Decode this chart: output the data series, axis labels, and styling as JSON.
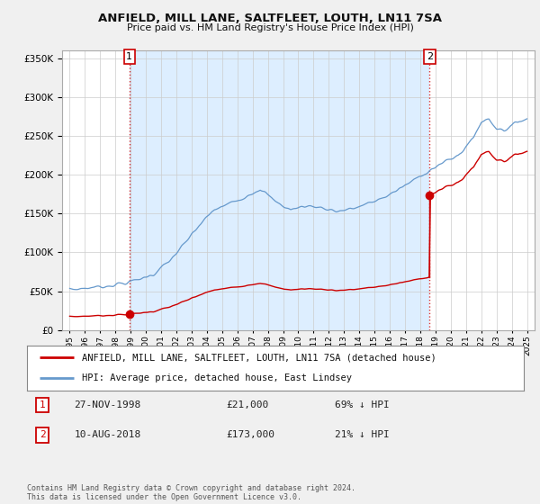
{
  "title": "ANFIELD, MILL LANE, SALTFLEET, LOUTH, LN11 7SA",
  "subtitle": "Price paid vs. HM Land Registry's House Price Index (HPI)",
  "bg_color": "#f0f0f0",
  "plot_bg_color": "#ffffff",
  "shade_color": "#ddeeff",
  "hpi_color": "#6699cc",
  "price_color": "#cc0000",
  "ylim": [
    0,
    360000
  ],
  "yticks": [
    0,
    50000,
    100000,
    150000,
    200000,
    250000,
    300000,
    350000
  ],
  "xlabel_years": [
    "1995",
    "1996",
    "1997",
    "1998",
    "1999",
    "2000",
    "2001",
    "2002",
    "2003",
    "2004",
    "2005",
    "2006",
    "2007",
    "2008",
    "2009",
    "2010",
    "2011",
    "2012",
    "2013",
    "2014",
    "2015",
    "2016",
    "2017",
    "2018",
    "2019",
    "2020",
    "2021",
    "2022",
    "2023",
    "2024",
    "2025"
  ],
  "sale1_year": 1998.917,
  "sale1_price": 21000,
  "sale2_year": 2018.608,
  "sale2_price": 173000,
  "legend_price_label": "ANFIELD, MILL LANE, SALTFLEET, LOUTH, LN11 7SA (detached house)",
  "legend_hpi_label": "HPI: Average price, detached house, East Lindsey",
  "footer": "Contains HM Land Registry data © Crown copyright and database right 2024.\nThis data is licensed under the Open Government Licence v3.0."
}
